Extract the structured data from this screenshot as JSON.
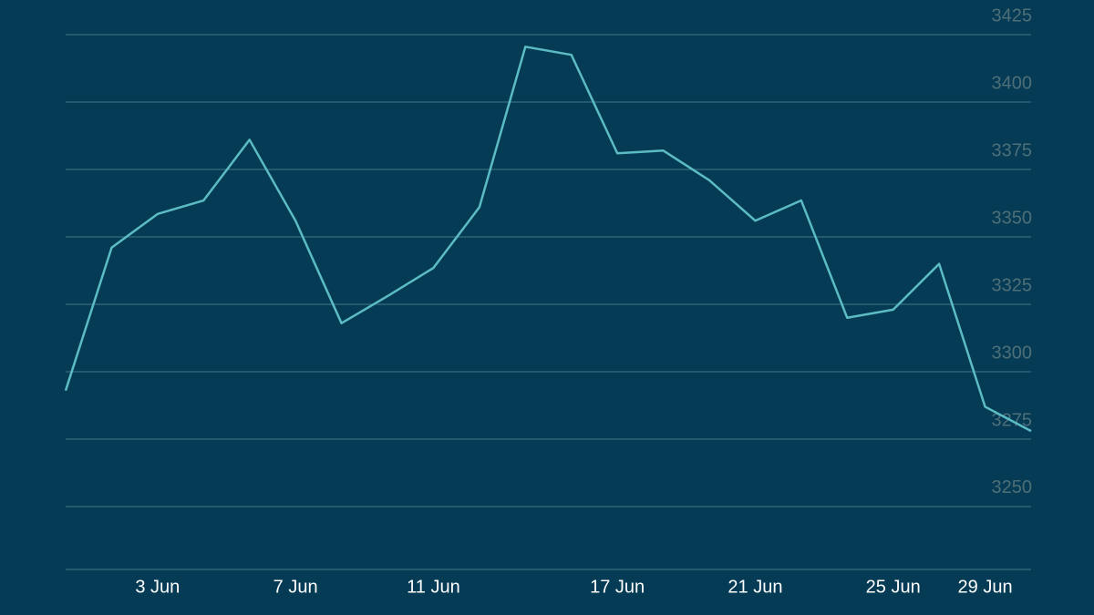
{
  "chart_data": {
    "type": "line",
    "categories": [
      null,
      null,
      "3 Jun",
      null,
      null,
      "7 Jun",
      null,
      null,
      "11 Jun",
      null,
      null,
      null,
      "17 Jun",
      null,
      null,
      "21 Jun",
      null,
      null,
      "25 Jun",
      null,
      "29 Jun",
      null
    ],
    "series": [
      {
        "color": "#5cbcc4",
        "values": [
          3293,
          3346,
          3358.5,
          3363.5,
          3386,
          3356,
          3318,
          3328,
          3338.5,
          3361,
          3420.5,
          3417.5,
          3381,
          3382,
          3371,
          3356,
          3363.5,
          3320,
          3323,
          3340,
          3287,
          3278
        ]
      }
    ],
    "ylim": [
      3226,
      3425
    ],
    "yticks": [
      3250,
      3275,
      3300,
      3325,
      3350,
      3375,
      3400,
      3425
    ],
    "grid": true
  }
}
